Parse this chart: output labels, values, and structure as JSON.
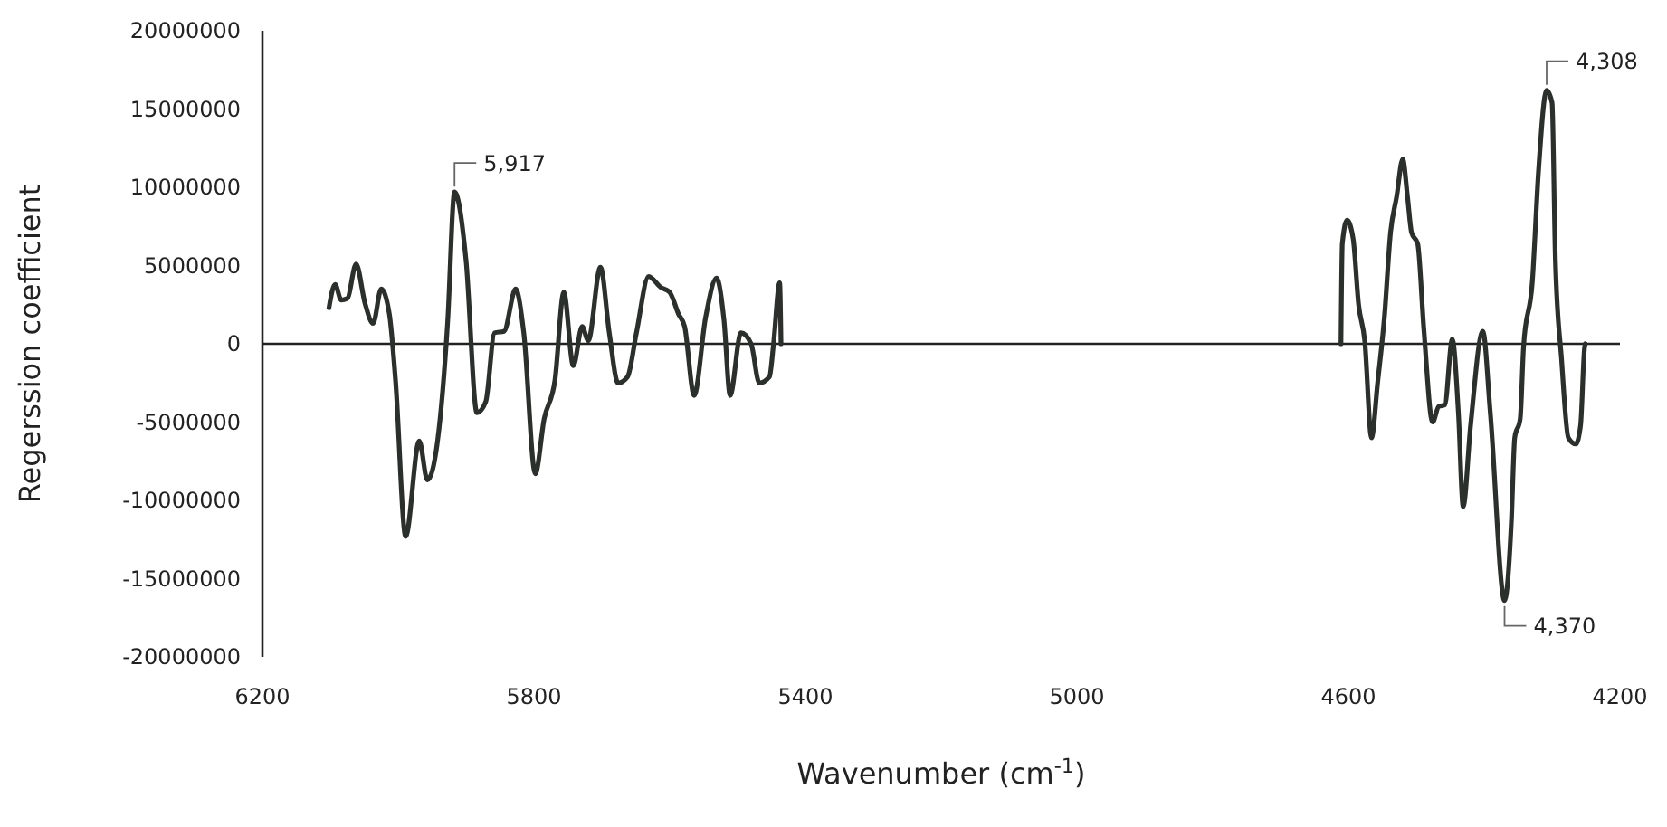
{
  "chart_data": {
    "type": "line",
    "xlabel": "Wavenumber (cm$^{-1}$)",
    "ylabel": "Regerssion coefficient",
    "xlim": [
      6200,
      4200
    ],
    "xticks": [
      6200,
      5800,
      5400,
      5000,
      4600,
      4200
    ],
    "ylim": [
      -20000000,
      20000000
    ],
    "yticks": [
      -20000000,
      -15000000,
      -10000000,
      -5000000,
      0,
      5000000,
      10000000,
      15000000,
      20000000
    ],
    "marker": "none",
    "line_style": "solid",
    "annotations": [
      {
        "text": "5,917",
        "x": 5917,
        "y": 9700000
      },
      {
        "text": "4,308",
        "x": 4308,
        "y": 16200000
      },
      {
        "text": "4,370",
        "x": 4370,
        "y": -16400000
      }
    ],
    "series": [
      {
        "color": "#2b302c",
        "x": [
          6102,
          6093,
          6084,
          6075,
          6062,
          6049,
          6037,
          6025,
          6013,
          6004,
          5989,
          5969,
          5957,
          5942,
          5927,
          5917,
          5900,
          5884,
          5871,
          5858,
          5844,
          5827,
          5815,
          5798,
          5785,
          5769,
          5756,
          5742,
          5729,
          5720,
          5702,
          5689,
          5676,
          5662,
          5649,
          5631,
          5613,
          5600,
          5587,
          5578,
          5564,
          5547,
          5531,
          5520,
          5511,
          5495,
          5480,
          5468,
          5453,
          5447,
          5438,
          5436,
          5000,
          4611,
          4609,
          4602,
          4593,
          4585,
          4576,
          4566,
          4557,
          4547,
          4538,
          4529,
          4520,
          4513,
          4507,
          4498,
          4489,
          4476,
          4467,
          4458,
          4447,
          4438,
          4431,
          4420,
          4402,
          4391,
          4370,
          4360,
          4355,
          4347,
          4342,
          4329,
          4320,
          4308,
          4300,
          4295,
          4286,
          4276,
          4265,
          4258,
          4252,
          4251
        ],
        "values": [
          2300000,
          3800000,
          2800000,
          2900000,
          5100000,
          2600000,
          1300000,
          3500000,
          1900000,
          -2300000,
          -12300000,
          -6200000,
          -8700000,
          -6200000,
          1500000,
          9700000,
          5300000,
          -4400000,
          -3700000,
          700000,
          800000,
          3500000,
          700000,
          -8300000,
          -4800000,
          -2300000,
          3300000,
          -1400000,
          1100000,
          200000,
          4900000,
          700000,
          -2500000,
          -2100000,
          700000,
          4300000,
          3600000,
          3300000,
          1900000,
          1100000,
          -3300000,
          1700000,
          4200000,
          1500000,
          -3300000,
          700000,
          0,
          -2500000,
          -2100000,
          0,
          3900000,
          0,
          null,
          0,
          6400000,
          7900000,
          6700000,
          2500000,
          200000,
          -6000000,
          -2500000,
          1700000,
          7100000,
          9400000,
          11800000,
          9400000,
          7100000,
          6400000,
          1000000,
          -5000000,
          -4000000,
          -3900000,
          300000,
          -4400000,
          -10400000,
          -5200000,
          800000,
          -4400000,
          -16400000,
          -11400000,
          -6000000,
          -4800000,
          -200000,
          4000000,
          11000000,
          16200000,
          15400000,
          5200000,
          -1000000,
          -6000000,
          -6400000,
          -5200000,
          -200000,
          0
        ]
      }
    ]
  }
}
